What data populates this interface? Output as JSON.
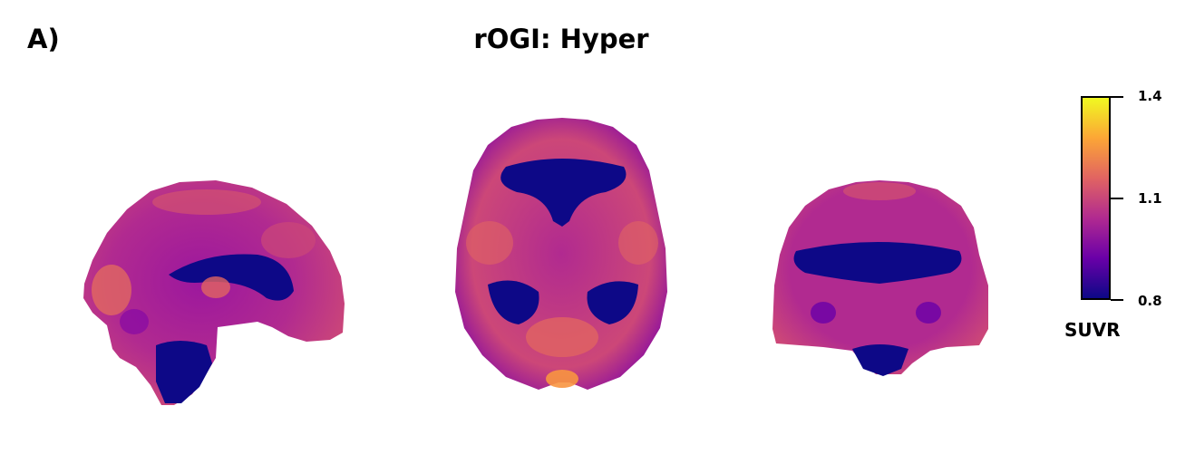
{
  "panel_label": "A)",
  "title": "rOGI: Hyper",
  "views": [
    {
      "name": "sagittal"
    },
    {
      "name": "axial"
    },
    {
      "name": "coronal"
    }
  ],
  "colorbar": {
    "label": "SUVR",
    "colormap": "plasma",
    "min": 0.8,
    "max": 1.4,
    "ticks": [
      "1.4",
      "1.1",
      "0.8"
    ],
    "colors": [
      "#0d0887",
      "#6a00a8",
      "#b12a90",
      "#e16462",
      "#fca636",
      "#f0f921"
    ]
  }
}
